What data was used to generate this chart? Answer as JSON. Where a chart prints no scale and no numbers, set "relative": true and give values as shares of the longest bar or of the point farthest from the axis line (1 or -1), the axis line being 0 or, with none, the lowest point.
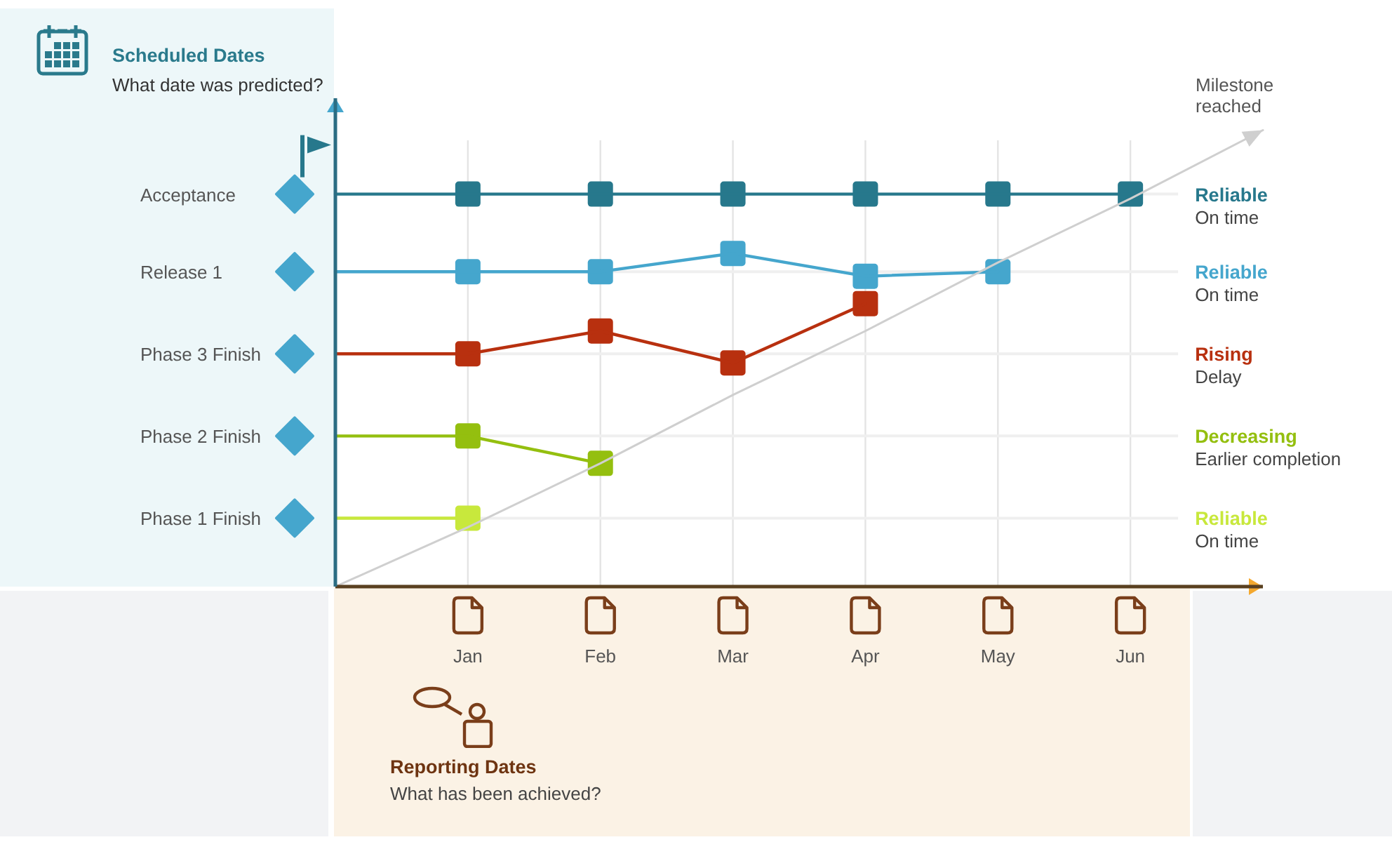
{
  "chart_data": {
    "type": "line",
    "relative": true,
    "xlabel": "Reporting Dates",
    "annotations": [
      "Scheduled Dates",
      "What date was predicted?",
      "What has been achieved?",
      "Acceptance",
      "Release 1",
      "Phase 3 Finish",
      "Phase 2 Finish",
      "Phase 1 Finish",
      "On time",
      "On time",
      "Delay",
      "Earlier completion",
      "On time"
    ],
    "categories": [
      null,
      "Jan",
      "Feb",
      "Mar",
      "Apr",
      "May",
      "Jun",
      null
    ],
    "grid": "x",
    "marker": "square",
    "line_style": "solid",
    "ref_lines": [
      {
        "axis": "y",
        "value": 0.86,
        "color": "#efefef"
      },
      {
        "axis": "y",
        "value": 0.69,
        "color": "#efefef"
      },
      {
        "axis": "y",
        "value": 0.51,
        "color": "#efefef"
      },
      {
        "axis": "y",
        "value": 0.33,
        "color": "#efefef"
      },
      {
        "axis": "y",
        "value": 0.15,
        "color": "#efefef"
      }
    ],
    "series": [
      {
        "name": "Reliable",
        "color": "#27788c",
        "values": [
          0.86,
          0.86,
          0.86,
          0.86,
          0.86,
          0.86,
          0.86,
          null
        ]
      },
      {
        "name": "Reliable",
        "color": "#45a6cd",
        "values": [
          0.69,
          0.69,
          0.69,
          0.73,
          0.68,
          0.69,
          null,
          null
        ]
      },
      {
        "name": "Rising",
        "color": "#b8300f",
        "values": [
          0.51,
          0.51,
          0.56,
          0.49,
          0.62,
          null,
          null,
          null
        ]
      },
      {
        "name": "Decreasing",
        "color": "#94bf0f",
        "values": [
          0.33,
          0.33,
          0.27,
          null,
          null,
          null,
          null,
          null
        ]
      },
      {
        "name": "Reliable",
        "color": "#c8e83c",
        "values": [
          0.15,
          0.15,
          null,
          null,
          null,
          null,
          null,
          null
        ]
      },
      {
        "name": "Milestone reached",
        "color": "#cfcfcf",
        "marker": "none",
        "values": [
          0,
          0.13,
          0.27,
          0.42,
          0.56,
          0.71,
          0.85,
          1
        ]
      }
    ]
  }
}
